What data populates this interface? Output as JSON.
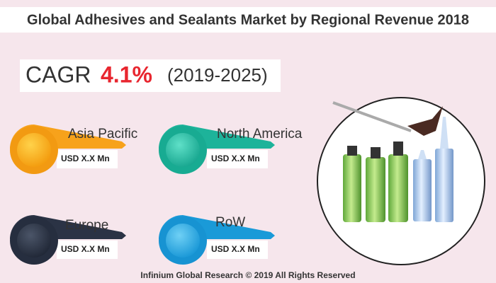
{
  "header": {
    "title": "Global Adhesives and Sealants Market by Regional Revenue 2018"
  },
  "cagr": {
    "label": "CAGR",
    "value": "4.1%",
    "period": "(2019-2025)"
  },
  "regions": [
    {
      "name": "Asia Pacific",
      "revenue": "USD X.X Mn"
    },
    {
      "name": "North America",
      "revenue": "USD X.X Mn"
    },
    {
      "name": "Europe",
      "revenue": "USD X.X Mn"
    },
    {
      "name": "RoW",
      "revenue": "USD X.X Mn"
    }
  ],
  "footer": {
    "text": "Infinium Global Research © 2019 All Rights Reserved"
  }
}
